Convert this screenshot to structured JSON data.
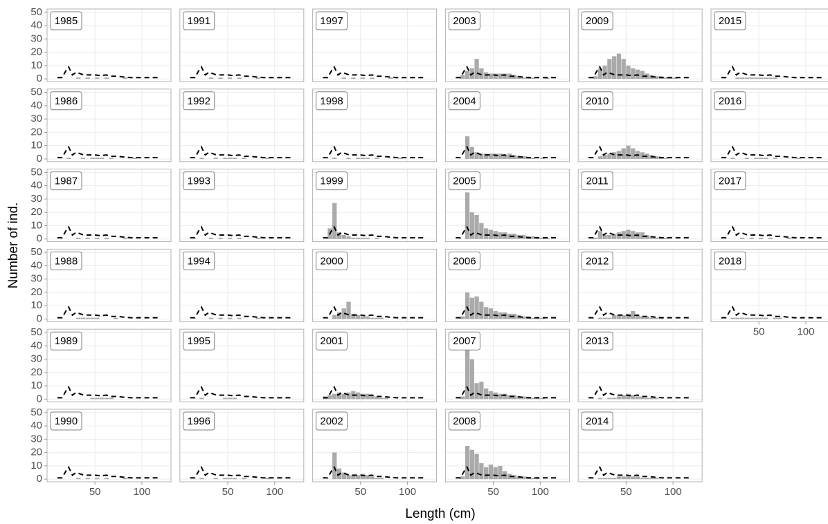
{
  "chart_data": {
    "type": "facet-histogram",
    "xlabel": "Length (cm)",
    "ylabel": "Number of ind.",
    "xlim": [
      -1,
      131
    ],
    "ylim": [
      -2,
      52.5
    ],
    "xticks": [
      50,
      100
    ],
    "yticks": [
      0,
      10,
      20,
      30,
      40,
      50
    ],
    "grid": true,
    "bar_color": "#aaaaaa",
    "bins": [
      10,
      15,
      20,
      25,
      30,
      35,
      40,
      45,
      50,
      55,
      60,
      65,
      70,
      75,
      80,
      85,
      90,
      95,
      100,
      105,
      110,
      115,
      120,
      125
    ],
    "line": {
      "color": "#000000",
      "x": [
        10,
        15,
        19,
        22,
        26,
        30,
        34,
        38,
        44,
        50,
        56,
        62,
        68,
        74,
        80,
        88,
        96,
        104,
        112,
        120
      ],
      "values": [
        1,
        1,
        6,
        9,
        3,
        5,
        4,
        3,
        3,
        3,
        2.5,
        3,
        2,
        2,
        1.5,
        1,
        1,
        1,
        1,
        1
      ]
    },
    "panels": [
      {
        "title": "1985",
        "values": [
          0,
          0,
          0,
          0,
          1,
          0,
          1,
          0,
          1,
          0,
          1,
          0,
          0,
          0,
          1,
          0,
          0,
          0,
          0,
          0,
          0,
          0,
          0
        ]
      },
      {
        "title": "1986",
        "values": [
          0,
          0,
          1,
          0,
          0,
          1,
          0,
          1,
          1,
          1,
          0,
          1,
          0,
          0,
          0,
          0,
          1,
          0,
          0,
          0,
          0,
          0,
          0
        ]
      },
      {
        "title": "1987",
        "values": [
          0,
          0,
          0,
          0,
          1,
          0,
          1,
          0,
          1,
          0,
          1,
          0,
          0,
          0,
          1,
          0,
          0,
          0,
          0,
          0,
          0,
          0,
          0
        ]
      },
      {
        "title": "1988",
        "values": [
          0,
          0,
          0,
          0,
          1,
          1,
          1,
          1,
          1,
          0,
          0,
          0,
          1,
          0,
          0,
          0,
          0,
          0,
          0,
          0,
          0,
          0,
          0
        ]
      },
      {
        "title": "1989",
        "values": [
          0,
          0,
          0,
          0,
          0,
          0,
          0,
          1,
          1,
          1,
          1,
          1,
          0,
          0,
          0,
          0,
          0,
          0,
          0,
          0,
          0,
          0,
          0
        ]
      },
      {
        "title": "1990",
        "values": [
          0,
          0,
          0,
          0,
          1,
          0,
          1,
          0,
          1,
          0,
          1,
          0,
          0,
          0,
          1,
          0,
          0,
          0,
          0,
          0,
          0,
          0,
          0
        ]
      },
      {
        "title": "1991",
        "values": [
          0,
          0,
          0,
          0,
          1,
          0,
          1,
          0,
          1,
          0,
          1,
          0,
          0,
          0,
          1,
          0,
          0,
          0,
          0,
          0,
          0,
          0,
          0
        ]
      },
      {
        "title": "1992",
        "values": [
          0,
          0,
          1,
          0,
          0,
          1,
          0,
          1,
          1,
          1,
          0,
          1,
          0,
          0,
          0,
          0,
          1,
          0,
          0,
          0,
          0,
          0,
          0
        ]
      },
      {
        "title": "1993",
        "values": [
          0,
          0,
          0,
          0,
          1,
          0,
          1,
          0,
          1,
          0,
          1,
          0,
          0,
          0,
          1,
          0,
          0,
          0,
          0,
          0,
          0,
          0,
          0
        ]
      },
      {
        "title": "1994",
        "values": [
          0,
          0,
          0,
          0,
          1,
          0,
          1,
          0,
          1,
          0,
          1,
          0,
          0,
          0,
          1,
          0,
          0,
          0,
          0,
          0,
          0,
          0,
          0
        ]
      },
      {
        "title": "1995",
        "values": [
          0,
          0,
          1,
          0,
          0,
          0,
          0,
          1,
          1,
          1,
          0,
          0,
          0,
          0,
          0,
          0,
          0,
          0,
          0,
          0,
          0,
          0,
          0
        ]
      },
      {
        "title": "1996",
        "values": [
          0,
          0,
          1,
          0,
          0,
          1,
          0,
          1,
          1,
          1,
          0,
          1,
          0,
          0,
          0,
          0,
          1,
          0,
          0,
          0,
          0,
          0,
          0
        ]
      },
      {
        "title": "1997",
        "values": [
          0,
          0,
          0,
          0,
          1,
          0,
          1,
          0,
          1,
          0,
          1,
          0,
          0,
          0,
          1,
          0,
          0,
          0,
          0,
          0,
          0,
          0,
          0
        ]
      },
      {
        "title": "1998",
        "values": [
          0,
          0,
          1,
          0,
          0,
          1,
          0,
          1,
          1,
          1,
          0,
          1,
          0,
          0,
          0,
          0,
          1,
          0,
          0,
          0,
          0,
          0,
          0
        ]
      },
      {
        "title": "1999",
        "values": [
          0,
          8,
          27,
          5,
          3,
          2,
          1,
          1,
          1,
          1,
          0,
          1,
          0,
          0,
          0,
          0,
          0,
          0,
          0,
          0,
          0,
          0,
          0
        ]
      },
      {
        "title": "2000",
        "values": [
          0,
          0,
          3,
          5,
          8,
          13,
          4,
          3,
          2,
          2,
          1,
          1,
          1,
          0,
          0,
          0,
          0,
          0,
          0,
          0,
          0,
          0,
          0
        ]
      },
      {
        "title": "2001",
        "values": [
          2,
          3,
          4,
          5,
          4,
          5,
          6,
          5,
          4,
          4,
          3,
          2,
          1,
          1,
          0,
          0,
          0,
          0,
          0,
          0,
          0,
          0,
          0
        ]
      },
      {
        "title": "2002",
        "values": [
          0,
          0,
          20,
          8,
          5,
          3,
          3,
          3,
          4,
          3,
          2,
          1,
          1,
          0,
          0,
          0,
          0,
          0,
          0,
          0,
          0,
          0,
          0
        ]
      },
      {
        "title": "2003",
        "values": [
          0,
          3,
          6,
          8,
          15,
          8,
          5,
          4,
          4,
          4,
          4,
          4,
          3,
          2,
          1,
          1,
          1,
          0,
          0,
          1,
          0,
          0,
          0
        ]
      },
      {
        "title": "2004",
        "values": [
          0,
          0,
          17,
          9,
          5,
          4,
          4,
          4,
          4,
          4,
          3,
          4,
          3,
          2,
          2,
          1,
          1,
          0,
          1,
          0,
          0,
          0,
          0
        ]
      },
      {
        "title": "2005",
        "values": [
          0,
          0,
          35,
          20,
          18,
          12,
          8,
          7,
          6,
          5,
          5,
          4,
          4,
          3,
          3,
          2,
          2,
          1,
          1,
          1,
          0,
          0,
          0
        ]
      },
      {
        "title": "2006",
        "values": [
          0,
          2,
          20,
          16,
          17,
          13,
          9,
          8,
          6,
          5,
          5,
          4,
          4,
          3,
          2,
          2,
          1,
          1,
          1,
          0,
          0,
          0,
          0
        ]
      },
      {
        "title": "2007",
        "values": [
          0,
          2,
          48,
          30,
          12,
          13,
          8,
          6,
          5,
          4,
          4,
          3,
          3,
          2,
          2,
          1,
          1,
          1,
          1,
          0,
          0,
          0,
          0
        ]
      },
      {
        "title": "2008",
        "values": [
          0,
          2,
          25,
          22,
          19,
          12,
          9,
          11,
          9,
          10,
          6,
          4,
          3,
          2,
          2,
          1,
          1,
          1,
          0,
          0,
          0,
          0,
          0
        ]
      },
      {
        "title": "2009",
        "values": [
          0,
          2,
          8,
          10,
          15,
          17,
          19,
          15,
          10,
          8,
          7,
          6,
          4,
          3,
          2,
          2,
          1,
          1,
          1,
          0,
          0,
          0,
          0
        ]
      },
      {
        "title": "2010",
        "values": [
          0,
          0,
          2,
          3,
          4,
          5,
          6,
          8,
          10,
          8,
          6,
          5,
          4,
          3,
          2,
          1,
          1,
          0,
          0,
          0,
          0,
          0,
          0
        ]
      },
      {
        "title": "2011",
        "values": [
          0,
          1,
          6,
          3,
          3,
          4,
          5,
          6,
          7,
          6,
          5,
          5,
          3,
          2,
          1,
          1,
          1,
          0,
          0,
          0,
          0,
          0,
          0
        ]
      },
      {
        "title": "2012",
        "values": [
          0,
          0,
          1,
          1,
          1,
          3,
          3,
          3,
          4,
          6,
          3,
          2,
          2,
          1,
          1,
          1,
          0,
          0,
          0,
          0,
          0,
          0,
          0
        ]
      },
      {
        "title": "2013",
        "values": [
          0,
          0,
          1,
          0,
          1,
          1,
          2,
          3,
          4,
          3,
          2,
          2,
          1,
          1,
          1,
          0,
          0,
          0,
          0,
          0,
          0,
          0,
          0
        ]
      },
      {
        "title": "2014",
        "values": [
          0,
          0,
          1,
          1,
          1,
          1,
          2,
          2,
          2,
          2,
          2,
          1,
          1,
          1,
          1,
          0,
          0,
          0,
          0,
          0,
          0,
          0,
          0
        ]
      },
      {
        "title": "2015",
        "values": [
          0,
          0,
          0,
          1,
          1,
          1,
          1,
          1,
          1,
          1,
          1,
          1,
          0,
          0,
          0,
          0,
          0,
          0,
          0,
          0,
          0,
          0,
          0
        ]
      },
      {
        "title": "2016",
        "values": [
          0,
          0,
          1,
          0,
          0,
          1,
          0,
          1,
          1,
          1,
          0,
          1,
          0,
          0,
          0,
          0,
          1,
          0,
          0,
          0,
          0,
          0,
          0
        ]
      },
      {
        "title": "2017",
        "values": [
          0,
          0,
          0,
          0,
          1,
          0,
          1,
          0,
          1,
          0,
          1,
          0,
          0,
          0,
          1,
          0,
          0,
          0,
          0,
          0,
          0,
          0,
          0
        ]
      },
      {
        "title": "2018",
        "values": [
          0,
          0,
          1,
          1,
          1,
          1,
          1,
          1,
          1,
          1,
          0,
          1,
          1,
          0,
          0,
          0,
          0,
          0,
          0,
          0,
          0,
          0,
          0
        ]
      }
    ]
  }
}
